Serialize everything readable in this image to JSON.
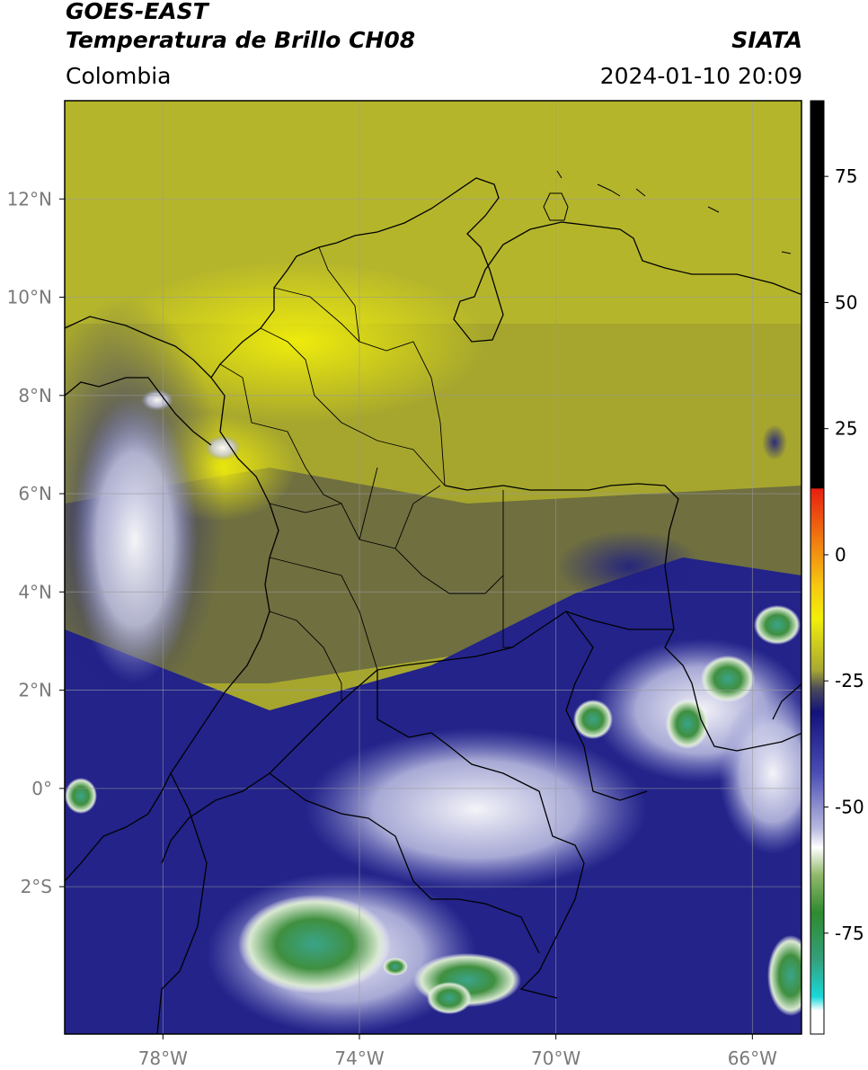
{
  "header": {
    "satellite": "GOES-EAST",
    "product": "Temperatura de Brillo CH08",
    "region": "Colombia",
    "agency": "SIATA",
    "timestamp": "2024-01-10 20:09"
  },
  "map": {
    "lon_range": [
      -80,
      -65
    ],
    "lat_range": [
      -5,
      14
    ],
    "lat_ticks": [
      {
        "value": 12,
        "label": "12°N"
      },
      {
        "value": 10,
        "label": "10°N"
      },
      {
        "value": 8,
        "label": "8°N"
      },
      {
        "value": 6,
        "label": "6°N"
      },
      {
        "value": 4,
        "label": "4°N"
      },
      {
        "value": 2,
        "label": "2°N"
      },
      {
        "value": 0,
        "label": "0°"
      },
      {
        "value": -2,
        "label": "2°S"
      }
    ],
    "lon_ticks": [
      {
        "value": -78,
        "label": "78°W"
      },
      {
        "value": -74,
        "label": "74°W"
      },
      {
        "value": -70,
        "label": "70°W"
      },
      {
        "value": -66,
        "label": "66°W"
      }
    ]
  },
  "colorbar": {
    "range": [
      -95,
      90
    ],
    "ticks": [
      {
        "value": 75,
        "label": "75"
      },
      {
        "value": 50,
        "label": "50"
      },
      {
        "value": 25,
        "label": "25"
      },
      {
        "value": 0,
        "label": "0"
      },
      {
        "value": -25,
        "label": "-25"
      },
      {
        "value": -50,
        "label": "-50"
      },
      {
        "value": -75,
        "label": "-75"
      }
    ]
  },
  "colors": {
    "frame": "#000000",
    "grid": "#9a9a9a",
    "tick_text": "#7a7a7a"
  }
}
